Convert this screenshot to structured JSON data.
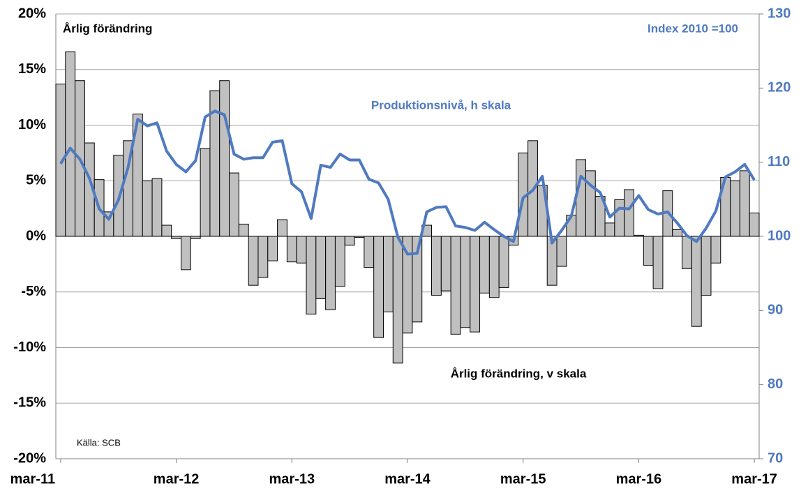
{
  "chart_data": {
    "type": "bar-line",
    "left_axis_title": "Årlig förändring",
    "right_axis_title": "Index 2010 =100",
    "source": "Källa: SCB",
    "categories": [
      "mar-11",
      null,
      null,
      null,
      null,
      null,
      null,
      null,
      null,
      null,
      null,
      null,
      "mar-12",
      null,
      null,
      null,
      null,
      null,
      null,
      null,
      null,
      null,
      null,
      null,
      "mar-13",
      null,
      null,
      null,
      null,
      null,
      null,
      null,
      null,
      null,
      null,
      null,
      "mar-14",
      null,
      null,
      null,
      null,
      null,
      null,
      null,
      null,
      null,
      null,
      null,
      "mar-15",
      null,
      null,
      null,
      null,
      null,
      null,
      null,
      null,
      null,
      null,
      null,
      "mar-16",
      null,
      null,
      null,
      null,
      null,
      null,
      null,
      null,
      null,
      null,
      null,
      "mar-17"
    ],
    "series": [
      {
        "name": "Årlig förändring, v skala",
        "type": "bar",
        "color": "#c0c0c0",
        "axis": "y",
        "values": [
          13.7,
          16.6,
          14.0,
          8.4,
          5.1,
          2.2,
          7.3,
          8.6,
          11.0,
          5.0,
          5.2,
          1.0,
          -0.2,
          -3.0,
          -0.2,
          7.9,
          13.1,
          14.0,
          5.7,
          1.1,
          -4.4,
          -3.7,
          -2.2,
          1.5,
          -2.3,
          -2.4,
          -7.0,
          -5.6,
          -6.6,
          -4.5,
          -0.8,
          -0.1,
          -2.8,
          -9.1,
          -6.8,
          -11.4,
          -8.7,
          -7.7,
          1.0,
          -5.3,
          -4.9,
          -8.8,
          -8.2,
          -8.6,
          -5.1,
          -5.5,
          -4.6,
          -0.8,
          7.5,
          8.6,
          4.6,
          -4.4,
          -2.7,
          1.9,
          6.9,
          5.9,
          3.6,
          1.2,
          3.3,
          4.2,
          0.1,
          -2.6,
          -4.7,
          4.1,
          0.6,
          -2.9,
          -8.1,
          -5.3,
          -2.4,
          5.3,
          5.0,
          5.9,
          2.1
        ]
      },
      {
        "name": "Produktionsnivå, h skala",
        "type": "line",
        "color": "#4f7ac0",
        "axis": "y2",
        "values": [
          109.8,
          111.9,
          110.4,
          107.8,
          103.7,
          102.3,
          104.9,
          109.3,
          115.8,
          114.9,
          115.3,
          111.5,
          109.7,
          108.7,
          110.2,
          116.1,
          116.9,
          116.4,
          111.1,
          110.4,
          110.6,
          110.6,
          112.7,
          112.9,
          107.1,
          106.0,
          102.4,
          109.6,
          109.3,
          111.1,
          110.3,
          110.3,
          107.7,
          107.2,
          105.0,
          99.9,
          97.6,
          97.7,
          103.3,
          103.9,
          104.0,
          101.4,
          101.2,
          100.8,
          101.9,
          100.9,
          100.0,
          99.3,
          105.2,
          106.2,
          108.1,
          99.1,
          100.8,
          102.7,
          108.1,
          106.9,
          105.9,
          102.6,
          103.8,
          103.7,
          105.5,
          103.6,
          103.0,
          103.3,
          101.8,
          100.1,
          99.3,
          101.1,
          103.4,
          108.0,
          108.7,
          109.7,
          107.6
        ]
      }
    ],
    "ylim": [
      -20,
      20
    ],
    "yticks": [
      {
        "value": -20,
        "label": "-20%"
      },
      {
        "value": -15,
        "label": "-15%"
      },
      {
        "value": -10,
        "label": "-10%"
      },
      {
        "value": -5,
        "label": "-5%"
      },
      {
        "value": 0,
        "label": "0%"
      },
      {
        "value": 5,
        "label": "5%"
      },
      {
        "value": 10,
        "label": "10%"
      },
      {
        "value": 15,
        "label": "15%"
      },
      {
        "value": 20,
        "label": "20%"
      }
    ],
    "y2lim": [
      70,
      130
    ],
    "y2ticks": [
      70,
      80,
      90,
      100,
      110,
      120,
      130
    ],
    "y2_color": "#4f7ac0",
    "grid": true
  }
}
